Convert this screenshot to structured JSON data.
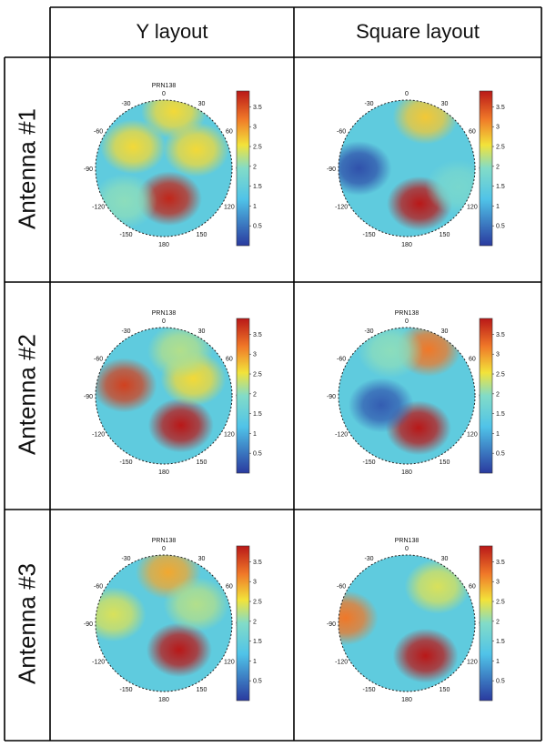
{
  "columns": [
    "Y layout",
    "Square layout"
  ],
  "rows": [
    "Antenna #1",
    "Antenna #2",
    "Antenna #3"
  ],
  "colors": {
    "low": "#2b3a9f",
    "mid": "#4fc3e8",
    "yellow": "#f2e33a",
    "high": "#c81d1d",
    "grid": "#222222"
  },
  "chart_data": {
    "type": "heatmap",
    "projection": "polar (azimuth, elevation)",
    "colorbar": {
      "min": 0,
      "max": 3.9,
      "ticks": [
        "0.5",
        "1",
        "1.5",
        "2",
        "2.5",
        "3",
        "3.5"
      ]
    },
    "panels": [
      {
        "row": "Antenna #1",
        "column": "Y layout",
        "title": "PRN138",
        "angle_labels": [
          "0",
          "30",
          "60",
          "90",
          "120",
          "150",
          "180",
          "-150",
          "-120",
          "-90",
          "-60",
          "-30"
        ],
        "blobs": [
          {
            "azimuth": 170,
            "radius": 0.45,
            "value": 3.8
          },
          {
            "azimuth": 10,
            "radius": 0.85,
            "value": 2.6
          },
          {
            "azimuth": -55,
            "radius": 0.55,
            "value": 2.6
          },
          {
            "azimuth": 60,
            "radius": 0.55,
            "value": 2.6
          },
          {
            "azimuth": -130,
            "radius": 0.75,
            "value": 2.0
          }
        ]
      },
      {
        "row": "Antenna #1",
        "column": "Square layout",
        "title": "",
        "angle_labels": [
          "0",
          "30",
          "60",
          "90",
          "120",
          "150",
          "180",
          "-150",
          "-120",
          "-90",
          "-60",
          "-30"
        ],
        "blobs": [
          {
            "azimuth": 160,
            "radius": 0.55,
            "value": 3.9
          },
          {
            "azimuth": 20,
            "radius": 0.8,
            "value": 2.7
          },
          {
            "azimuth": 110,
            "radius": 0.8,
            "value": 1.8
          },
          {
            "azimuth": -90,
            "radius": 0.7,
            "value": 0.2
          }
        ]
      },
      {
        "row": "Antenna #2",
        "column": "Y layout",
        "title": "PRN138",
        "angle_labels": [
          "0",
          "30",
          "60",
          "90",
          "120",
          "150",
          "180",
          "-150",
          "-120",
          "-90",
          "-60",
          "-30"
        ],
        "blobs": [
          {
            "azimuth": 150,
            "radius": 0.5,
            "value": 3.9
          },
          {
            "azimuth": -75,
            "radius": 0.6,
            "value": 3.6
          },
          {
            "azimuth": 60,
            "radius": 0.5,
            "value": 2.6
          },
          {
            "azimuth": 20,
            "radius": 0.7,
            "value": 2.2
          }
        ]
      },
      {
        "row": "Antenna #2",
        "column": "Square layout",
        "title": "PRN138",
        "angle_labels": [
          "0",
          "30",
          "60",
          "90",
          "120",
          "150",
          "180",
          "-150",
          "-120",
          "-90",
          "-60",
          "-30"
        ],
        "blobs": [
          {
            "azimuth": 160,
            "radius": 0.5,
            "value": 3.9
          },
          {
            "azimuth": 25,
            "radius": 0.75,
            "value": 3.2
          },
          {
            "azimuth": -20,
            "radius": 0.7,
            "value": 2.0
          },
          {
            "azimuth": -110,
            "radius": 0.4,
            "value": 0.3
          }
        ]
      },
      {
        "row": "Antenna #3",
        "column": "Y layout",
        "title": "PRN138",
        "angle_labels": [
          "0",
          "30",
          "60",
          "90",
          "120",
          "150",
          "180",
          "-150",
          "-120",
          "-90",
          "-60",
          "-30"
        ],
        "blobs": [
          {
            "azimuth": 150,
            "radius": 0.45,
            "value": 3.9
          },
          {
            "azimuth": 5,
            "radius": 0.75,
            "value": 2.9
          },
          {
            "azimuth": -80,
            "radius": 0.75,
            "value": 2.4
          },
          {
            "azimuth": 60,
            "radius": 0.55,
            "value": 2.2
          }
        ]
      },
      {
        "row": "Antenna #3",
        "column": "Square layout",
        "title": "PRN138",
        "angle_labels": [
          "0",
          "30",
          "60",
          "90",
          "120",
          "150",
          "180",
          "-150",
          "-120",
          "-90",
          "-60",
          "-30"
        ],
        "blobs": [
          {
            "azimuth": 150,
            "radius": 0.55,
            "value": 3.9
          },
          {
            "azimuth": -85,
            "radius": 0.9,
            "value": 3.2
          },
          {
            "azimuth": 40,
            "radius": 0.7,
            "value": 2.4
          }
        ]
      }
    ]
  }
}
